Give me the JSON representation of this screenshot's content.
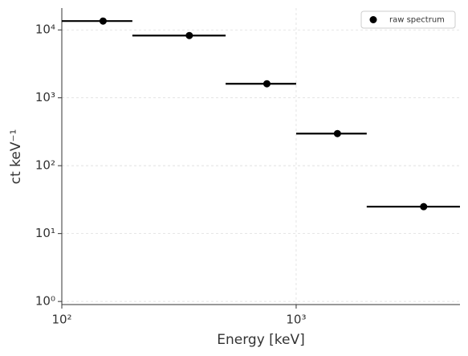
{
  "chart_data": {
    "type": "scatter",
    "x_label": "Energy [keV]",
    "y_label": "ct keV⁻¹",
    "x": [
      150,
      350,
      750,
      1500,
      3500
    ],
    "xerr": [
      50,
      150,
      250,
      500,
      1500
    ],
    "series": [
      {
        "name": "raw spectrum",
        "color": "#000000",
        "values": [
          13500,
          8260,
          1610,
          297,
          24.9
        ]
      }
    ],
    "xlim": [
      100,
      5000
    ],
    "ylim": [
      0.9,
      21000
    ],
    "xticks": [
      {
        "value": 100,
        "label": "10²"
      },
      {
        "value": 1000,
        "label": "10³"
      }
    ],
    "yticks": [
      {
        "value": 1,
        "label": "10⁰"
      },
      {
        "value": 10,
        "label": "10¹"
      },
      {
        "value": 100,
        "label": "10²"
      },
      {
        "value": 1000,
        "label": "10³"
      },
      {
        "value": 10000,
        "label": "10⁴"
      }
    ],
    "xscale": "log",
    "yscale": "log",
    "grid": true,
    "legend": "upper right"
  }
}
